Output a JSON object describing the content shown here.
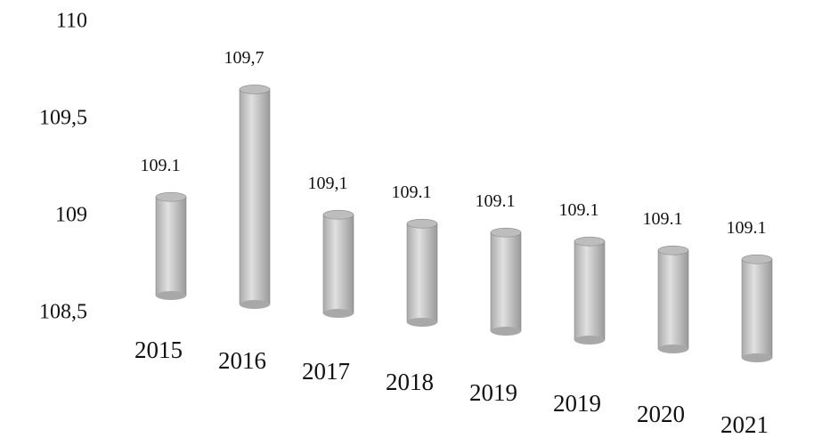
{
  "chart_data": {
    "type": "bar",
    "categories": [
      "2015",
      "2016",
      "2017",
      "2018",
      "2019",
      "2019",
      "2020",
      "2021"
    ],
    "values": [
      109.1,
      109.7,
      109.1,
      109.1,
      109.1,
      109.1,
      109.1,
      109.1
    ],
    "value_labels": [
      "109.1",
      "109,7",
      "109,1",
      "109.1",
      "109.1",
      "109.1",
      "109.1",
      "109.1"
    ],
    "color": "#c8c8c8",
    "ylim": [
      108.5,
      110
    ],
    "yticks": [
      110,
      {
        "value": 109.5,
        "label": "109,5"
      },
      109,
      {
        "value": 108.5,
        "label": "108,5"
      }
    ]
  }
}
